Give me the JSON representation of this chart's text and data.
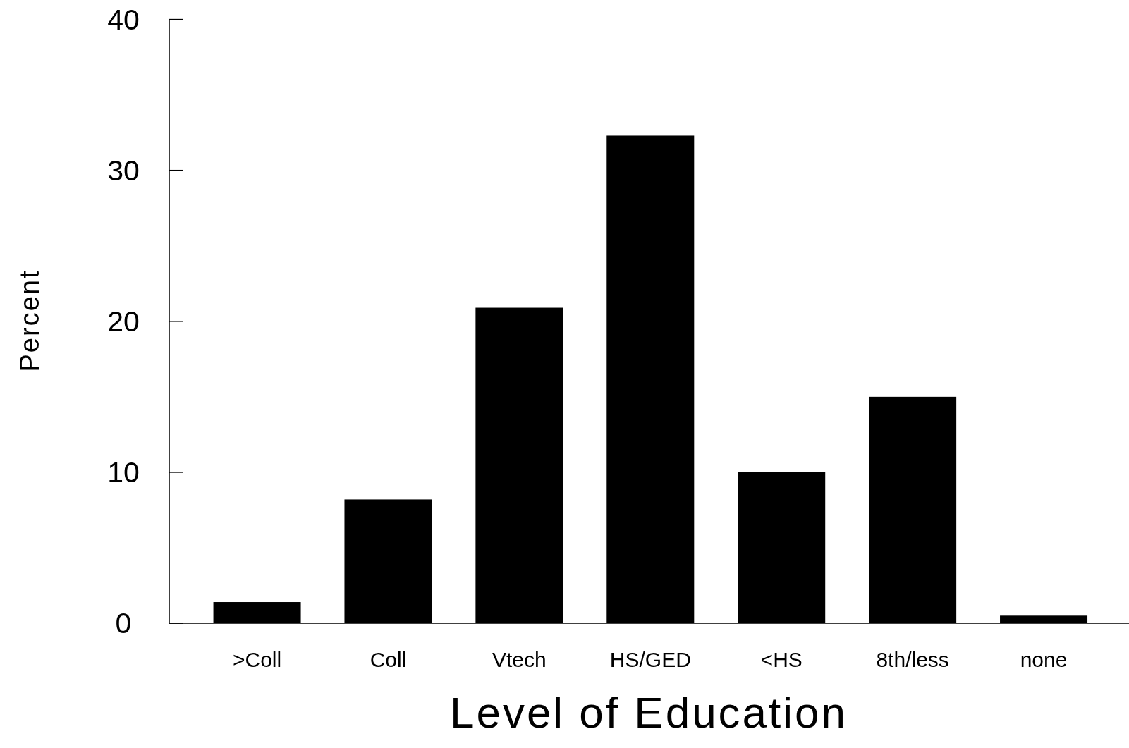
{
  "chart_data": {
    "type": "bar",
    "xlabel": "Level of Education",
    "ylabel": "Percent",
    "categories": [
      ">Coll",
      "Coll",
      "Vtech",
      "HS/GED",
      "<HS",
      "8th/less",
      "none"
    ],
    "values": [
      1.4,
      8.2,
      20.9,
      32.3,
      10.0,
      15.0,
      0.5
    ],
    "color": "#000000",
    "ylim": [
      0,
      40
    ],
    "yticks": [
      0,
      10,
      20,
      30,
      40
    ],
    "grid": false
  }
}
